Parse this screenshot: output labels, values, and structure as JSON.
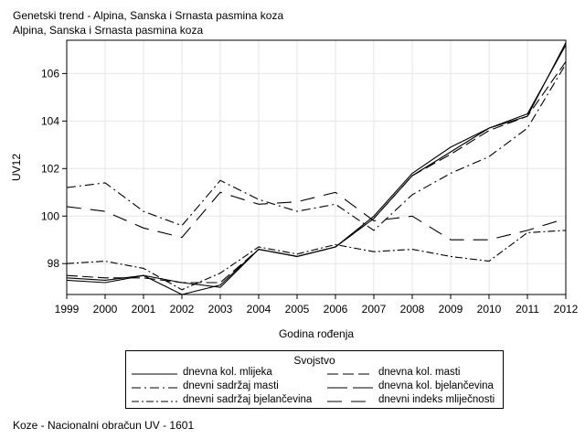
{
  "title": "Genetski trend - Alpina, Sanska i Srnasta pasmina koza",
  "subtitle": "Alpina, Sanska i Srnasta pasmina koza",
  "footnote": "Koze - Nacionalni obračun UV - 1601",
  "chart_data": {
    "type": "line",
    "xlabel": "Godina rođenja",
    "ylabel": "UV12",
    "x": [
      1999,
      2000,
      2001,
      2002,
      2003,
      2004,
      2005,
      2006,
      2007,
      2008,
      2009,
      2010,
      2011,
      2012
    ],
    "xlim": [
      1999,
      2012
    ],
    "ylim": [
      96.7,
      107.4
    ],
    "yticks": [
      98,
      100,
      102,
      104,
      106
    ],
    "grid": true,
    "legend_title": "Svojstvo",
    "legend_placement": "bottom",
    "series": [
      {
        "name": "dnevna kol. mlijeka",
        "dash": "solid",
        "values": [
          97.4,
          97.3,
          97.5,
          96.7,
          97.1,
          98.6,
          98.3,
          98.7,
          100.0,
          101.8,
          102.9,
          103.7,
          104.3,
          107.2
        ]
      },
      {
        "name": "dnevna kol. masti",
        "dash": "longdash",
        "values": [
          97.5,
          97.4,
          97.4,
          97.2,
          97.2,
          98.6,
          98.3,
          98.7,
          99.9,
          101.7,
          102.6,
          103.6,
          104.2,
          106.5
        ]
      },
      {
        "name": "dnevni sadržaj masti",
        "dash": "dashdot",
        "values": [
          101.2,
          101.4,
          100.2,
          99.6,
          101.5,
          100.7,
          100.2,
          100.5,
          99.4,
          100.9,
          101.8,
          102.5,
          103.7,
          106.4
        ]
      },
      {
        "name": "dnevna kol. bjelančevina",
        "dash": "solid",
        "values": [
          97.3,
          97.2,
          97.5,
          97.2,
          97.0,
          98.6,
          98.3,
          98.7,
          99.9,
          101.7,
          102.7,
          103.7,
          104.2,
          107.3
        ]
      },
      {
        "name": "dnevni sadržaj bjelančevina",
        "dash": "dashdot2",
        "values": [
          98.0,
          98.1,
          97.8,
          96.9,
          97.6,
          98.7,
          98.4,
          98.8,
          98.5,
          98.6,
          98.3,
          98.1,
          99.3,
          99.4
        ]
      },
      {
        "name": "dnevni indeks mliječnosti",
        "dash": "dash",
        "values": [
          100.4,
          100.2,
          99.5,
          99.1,
          101.0,
          100.5,
          100.6,
          101.0,
          99.8,
          100.0,
          99.0,
          99.0,
          99.4,
          99.9
        ]
      }
    ]
  }
}
